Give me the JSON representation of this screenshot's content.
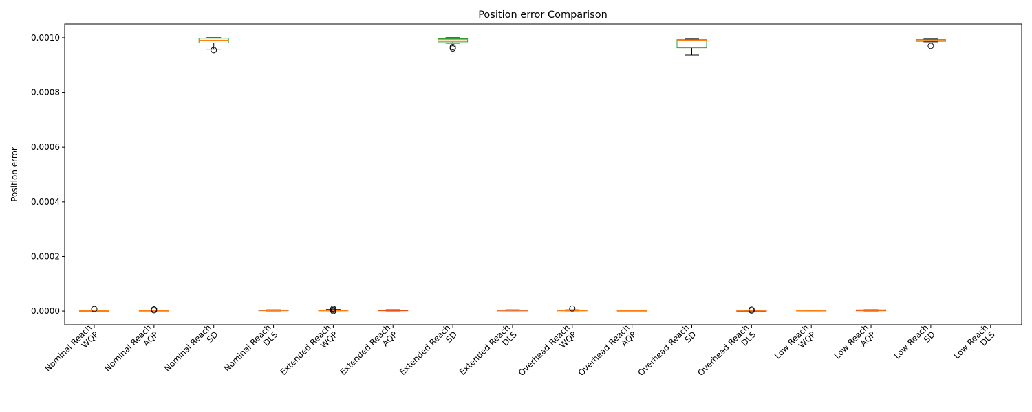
{
  "chart_data": {
    "type": "box",
    "title": "Position error Comparison",
    "ylabel": "Position error",
    "xlabel": "",
    "ylim": [
      -5e-05,
      0.00105
    ],
    "yticks": [
      "0.0000",
      "0.0002",
      "0.0004",
      "0.0006",
      "0.0008",
      "0.0010"
    ],
    "ytick_values": [
      0.0,
      0.0002,
      0.0004,
      0.0006,
      0.0008,
      0.001
    ],
    "grid": false,
    "categories": [
      [
        "Nominal Reach",
        "WQP"
      ],
      [
        "Nominal Reach",
        "AQP"
      ],
      [
        "Nominal Reach",
        "SD"
      ],
      [
        "Nominal Reach",
        "DLS"
      ],
      [
        "Extended Reach",
        "WQP"
      ],
      [
        "Extended Reach",
        "AQP"
      ],
      [
        "Extended Reach",
        "SD"
      ],
      [
        "Extended Reach",
        "DLS"
      ],
      [
        "Overhead Reach",
        "WQP"
      ],
      [
        "Overhead Reach",
        "AQP"
      ],
      [
        "Overhead Reach",
        "SD"
      ],
      [
        "Overhead Reach",
        "DLS"
      ],
      [
        "Low Reach",
        "WQP"
      ],
      [
        "Low Reach",
        "AQP"
      ],
      [
        "Low Reach",
        "SD"
      ],
      [
        "Low Reach",
        "DLS"
      ]
    ],
    "boxes": [
      {
        "min": 5e-07,
        "q1": 1e-06,
        "median": 1.5e-06,
        "q3": 2e-06,
        "max": 2.5e-06,
        "outliers": [
          7.5e-06
        ],
        "color": "#ff7f0e"
      },
      {
        "min": 5e-07,
        "q1": 1e-06,
        "median": 1.5e-06,
        "q3": 2.5e-06,
        "max": 3e-06,
        "outliers": [
          6.5e-06,
          3e-06
        ],
        "color": "#ff7f0e"
      },
      {
        "min": 0.000958,
        "q1": 0.000981,
        "median": 0.000991,
        "q3": 0.000998,
        "max": 0.001,
        "outliers": [
          0.000955
        ],
        "color": "#2ca02c"
      },
      {
        "min": 5e-07,
        "q1": 1e-06,
        "median": 2e-06,
        "q3": 4e-06,
        "max": 4.5e-06,
        "outliers": [],
        "color": "#9467bd"
      },
      {
        "min": 8e-07,
        "q1": 1.5e-06,
        "median": 2.5e-06,
        "q3": 3.5e-06,
        "max": 6e-06,
        "outliers": [
          8.5e-06,
          4.5e-06,
          2e-07
        ],
        "color": "#ff7f0e"
      },
      {
        "min": 5e-07,
        "q1": 1.5e-06,
        "median": 3e-06,
        "q3": 4e-06,
        "max": 5e-06,
        "outliers": [],
        "color": "#d62728"
      },
      {
        "min": 0.00098,
        "q1": 0.000985,
        "median": 0.000993,
        "q3": 0.000996,
        "max": 0.001,
        "outliers": [
          0.000966,
          0.000961
        ],
        "color": "#2ca02c"
      },
      {
        "min": 1e-06,
        "q1": 1.5e-06,
        "median": 2.5e-06,
        "q3": 3.5e-06,
        "max": 4.5e-06,
        "outliers": [],
        "color": "#9467bd"
      },
      {
        "min": 2e-07,
        "q1": 1e-06,
        "median": 2e-06,
        "q3": 3.5e-06,
        "max": 4.5e-06,
        "outliers": [
          9.5e-06
        ],
        "color": "#ff7f0e"
      },
      {
        "min": 2e-07,
        "q1": 1e-06,
        "median": 1.5e-06,
        "q3": 2.5e-06,
        "max": 3e-06,
        "outliers": [],
        "color": "#ff7f0e"
      },
      {
        "min": 0.000937,
        "q1": 0.000963,
        "median": 0.000991,
        "q3": 0.000993,
        "max": 0.000995,
        "outliers": [],
        "color": "#2ca02c"
      },
      {
        "min": 5e-07,
        "q1": 1e-06,
        "median": 2e-06,
        "q3": 2.5e-06,
        "max": 3e-06,
        "outliers": [
          5.5e-06,
          2e-06
        ],
        "color": "#d62728"
      },
      {
        "min": 5e-07,
        "q1": 1e-06,
        "median": 2e-06,
        "q3": 3e-06,
        "max": 3.5e-06,
        "outliers": [],
        "color": "#ff7f0e"
      },
      {
        "min": 5e-07,
        "q1": 1e-06,
        "median": 2.5e-06,
        "q3": 4.5e-06,
        "max": 5e-06,
        "outliers": [],
        "color": "#d62728"
      },
      {
        "min": 0.000985,
        "q1": 0.000987,
        "median": 0.00099,
        "q3": 0.000993,
        "max": 0.000995,
        "outliers": [
          0.00097
        ],
        "color": "#2ca02c"
      },
      {
        "min": null,
        "q1": null,
        "median": null,
        "q3": null,
        "max": null,
        "outliers": [],
        "color": "#9467bd"
      }
    ]
  }
}
